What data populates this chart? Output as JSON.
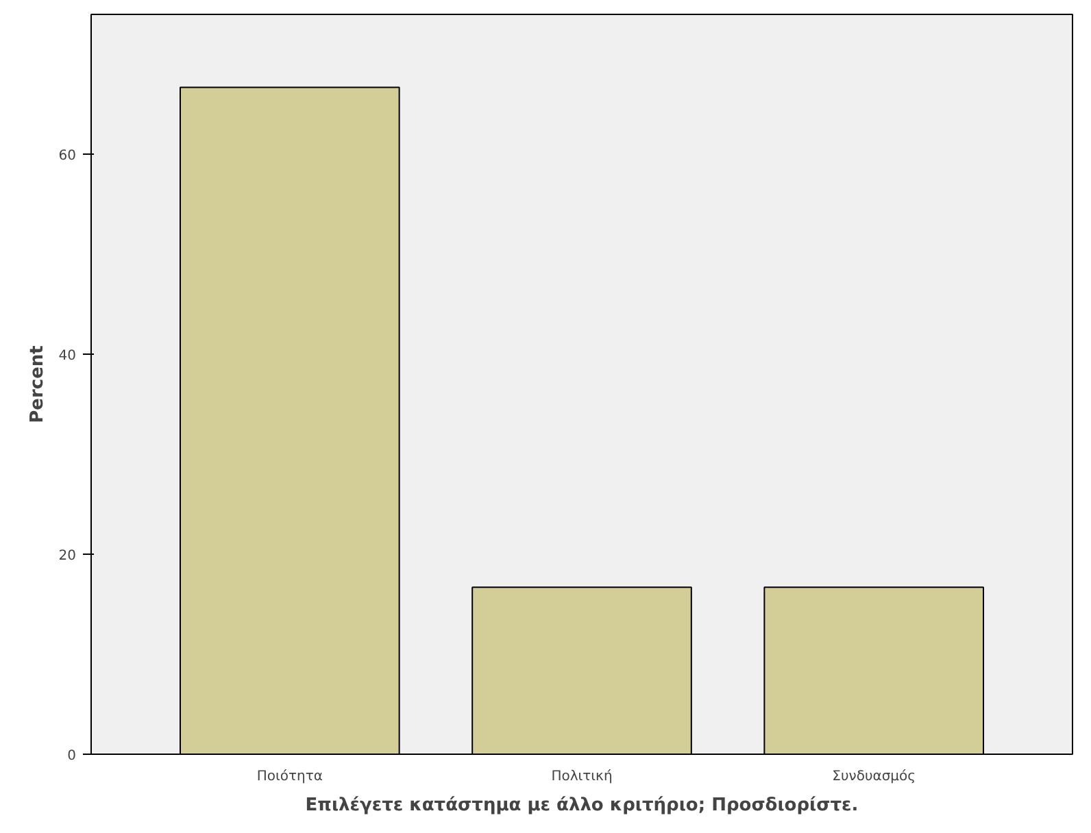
{
  "chart_data": {
    "type": "bar",
    "xlabel": "Επιλέγετε κατάστημα με άλλο κριτήριο; Προσδιορίστε.",
    "ylabel": "Percent",
    "categories": [
      "Ποιότητα",
      "Πολιτική",
      "Συνδυασμός"
    ],
    "values": [
      66.7,
      16.7,
      16.7
    ],
    "color": "#d3ce97",
    "ylim": [
      0,
      74
    ],
    "yticks": [
      0,
      20,
      40,
      60
    ],
    "grid": false
  }
}
